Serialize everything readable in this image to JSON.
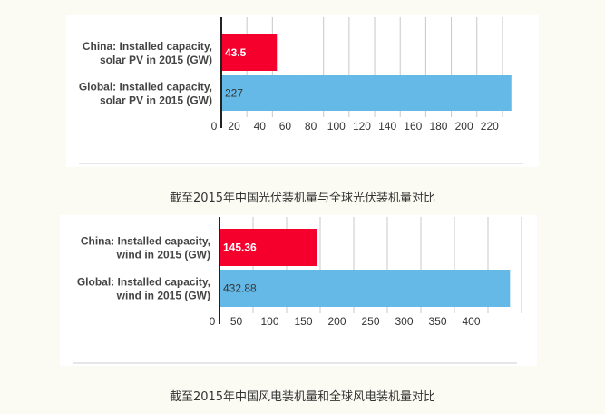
{
  "colors": {
    "china": "#f5002d",
    "global": "#65b9e6",
    "grid": "#c8c8c8",
    "axis": "#222222",
    "rule": "#cccccc"
  },
  "chart_data": [
    {
      "type": "bar",
      "orientation": "horizontal",
      "categories": [
        [
          "China: Installed capacity,",
          "solar PV in 2015 (GW)"
        ],
        [
          "Global: Installed capacity,",
          "solar PV in 2015 (GW)"
        ]
      ],
      "values": [
        43.5,
        227
      ],
      "value_labels": [
        "43.5",
        "227"
      ],
      "xticks": [
        "0",
        "20",
        "40",
        "60",
        "80",
        "100",
        "120",
        "140",
        "160",
        "180",
        "200",
        "220"
      ],
      "xlim": [
        0,
        230
      ],
      "grid": true,
      "caption": "截至2015年中国光伏装机量与全球光伏装机量对比"
    },
    {
      "type": "bar",
      "orientation": "horizontal",
      "categories": [
        [
          "China: Installed capacity,",
          "wind in 2015 (GW)"
        ],
        [
          "Global: Installed capacity,",
          "wind in 2015 (GW)"
        ]
      ],
      "values": [
        145.36,
        432.88
      ],
      "value_labels": [
        "145.36",
        "432.88"
      ],
      "xticks": [
        "0",
        "50",
        "100",
        "150",
        "200",
        "250",
        "300",
        "350",
        "400"
      ],
      "xlim": [
        0,
        450
      ],
      "grid": true,
      "caption": "截至2015年中国风电装机量和全球风电装机量对比"
    }
  ]
}
